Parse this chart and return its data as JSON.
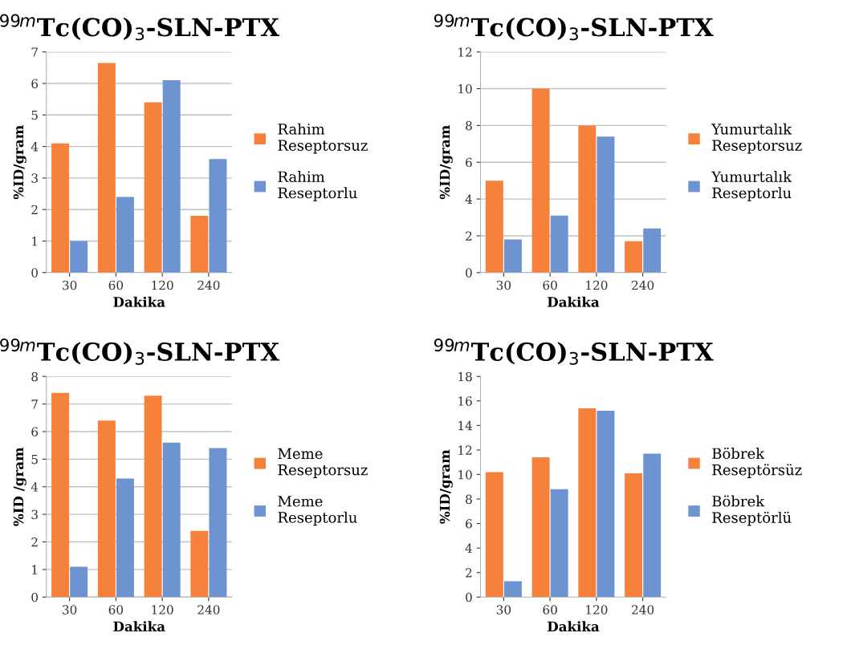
{
  "chart_data": [
    {
      "type": "bar",
      "title": "$^{99m}$Tc(CO)$_{3}$-SLN-PTX",
      "xlabel": "Dakika",
      "ylabel": "%ID/gram",
      "categories": [
        "30",
        "60",
        "120",
        "240"
      ],
      "series": [
        {
          "name": "Rahim\nReseptorsuz",
          "color": "#f5813a",
          "values": [
            4.1,
            6.65,
            5.4,
            1.8
          ]
        },
        {
          "name": "Rahim\nReseptorlu",
          "color": "#6d93d0",
          "values": [
            1.0,
            2.4,
            6.1,
            3.6
          ]
        }
      ],
      "ylim": [
        0,
        7
      ],
      "yticks": [
        0,
        1,
        2,
        3,
        4,
        5,
        6,
        7
      ],
      "grid": "y",
      "legend": "right"
    },
    {
      "type": "bar",
      "title": "$^{99m}$Tc(CO)$_{3}$-SLN-PTX",
      "xlabel": "Dakika",
      "ylabel": "%ID/gram",
      "categories": [
        "30",
        "60",
        "120",
        "240"
      ],
      "series": [
        {
          "name": "Yumurtalık\nReseptorsuz",
          "color": "#f5813a",
          "values": [
            5.0,
            10.0,
            8.0,
            1.7
          ]
        },
        {
          "name": "Yumurtalık\nReseptorlu",
          "color": "#6d93d0",
          "values": [
            1.8,
            3.1,
            7.4,
            2.4
          ]
        }
      ],
      "ylim": [
        0,
        12
      ],
      "yticks": [
        0,
        2,
        4,
        6,
        8,
        10,
        12
      ],
      "grid": "y",
      "legend": "right"
    },
    {
      "type": "bar",
      "title": "$^{99m}$Tc(CO)$_{3}$-SLN-PTX",
      "xlabel": "Dakika",
      "ylabel": "%ID /gram",
      "categories": [
        "30",
        "60",
        "120",
        "240"
      ],
      "series": [
        {
          "name": "Meme\nReseptorsuz",
          "color": "#f5813a",
          "values": [
            7.4,
            6.4,
            7.3,
            2.4
          ]
        },
        {
          "name": "Meme\nReseptorlu",
          "color": "#6d93d0",
          "values": [
            1.1,
            4.3,
            5.6,
            5.4
          ]
        }
      ],
      "ylim": [
        0,
        8
      ],
      "yticks": [
        0,
        1,
        2,
        3,
        4,
        5,
        6,
        7,
        8
      ],
      "grid": "y",
      "legend": "right"
    },
    {
      "type": "bar",
      "title": "$^{99m}$Tc(CO)$_{3}$-SLN-PTX",
      "xlabel": "Dakika",
      "ylabel": "%ID/gram",
      "categories": [
        "30",
        "60",
        "120",
        "240"
      ],
      "series": [
        {
          "name": "Böbrek\nReseptörsüz",
          "color": "#f5813a",
          "values": [
            10.2,
            11.4,
            15.4,
            10.1
          ]
        },
        {
          "name": "Böbrek\nReseptörlü",
          "color": "#6d93d0",
          "values": [
            1.3,
            8.8,
            15.2,
            11.7
          ]
        }
      ],
      "ylim": [
        0,
        18
      ],
      "yticks": [
        0,
        2,
        4,
        6,
        8,
        10,
        12,
        14,
        16,
        18
      ],
      "grid": false,
      "legend": "right"
    }
  ]
}
